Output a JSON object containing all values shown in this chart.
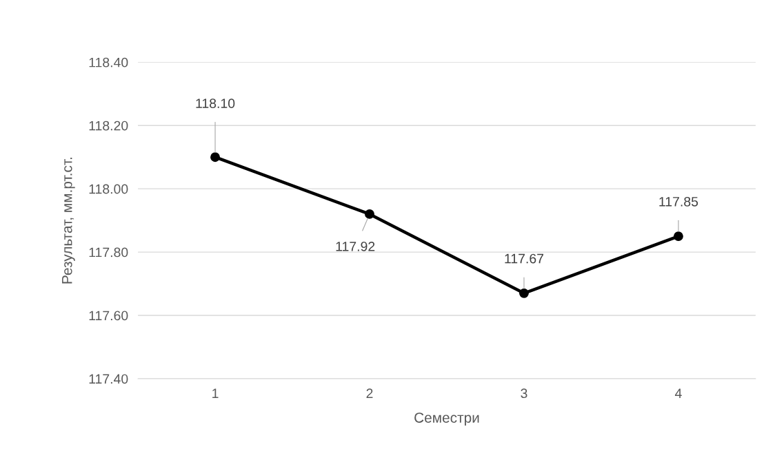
{
  "chart_data": {
    "type": "line",
    "xlabel": "Семестри",
    "ylabel": "Результат, мм.рт.ст.",
    "categories": [
      "1",
      "2",
      "3",
      "4"
    ],
    "series": [
      {
        "color": "#000000",
        "values": [
          118.1,
          117.92,
          117.67,
          117.85
        ],
        "value_labels": [
          "118.10",
          "117.92",
          "117.67",
          "117.85"
        ]
      }
    ],
    "ylim": [
      117.4,
      118.4
    ],
    "yticks": [
      {
        "value": 117.4,
        "label": "117.40"
      },
      {
        "value": 117.6,
        "label": "117.60"
      },
      {
        "value": 117.8,
        "label": "117.80"
      },
      {
        "value": 118.0,
        "label": "118.00"
      },
      {
        "value": 118.2,
        "label": "118.20"
      },
      {
        "value": 118.4,
        "label": "118.40"
      }
    ],
    "grid": "y",
    "marker": "circle",
    "line_style": "solid"
  }
}
